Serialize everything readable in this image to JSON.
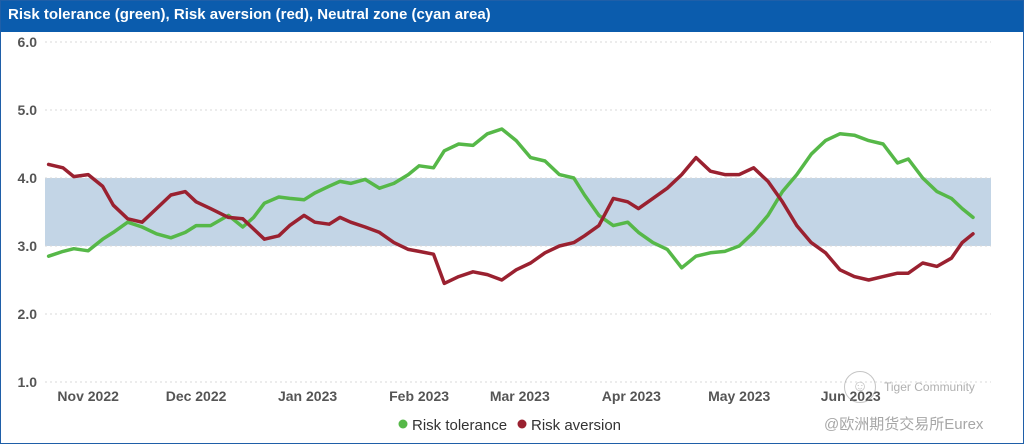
{
  "header": {
    "title": "Risk tolerance (green), Risk aversion (red), Neutral zone (cyan area)"
  },
  "watermark": {
    "line1": "Tiger Community",
    "line2": "@欧洲期货交易所Eurex"
  },
  "colors": {
    "header": "#0b5cad",
    "tolerance": "#56b848",
    "aversion": "#9a2130",
    "neutral_zone": "#c3d5e6",
    "grid": "#d9d9d9"
  },
  "chart_data": {
    "type": "line",
    "title": "Risk tolerance (green), Risk aversion (red), Neutral zone (cyan area)",
    "ylim": [
      1.0,
      6.0
    ],
    "yticks": [
      "1.0",
      "2.0",
      "3.0",
      "4.0",
      "5.0",
      "6.0"
    ],
    "xlim": [
      "2022-10-20",
      "2023-07-10"
    ],
    "x_tick_dates": [
      "2022-11-01",
      "2022-12-01",
      "2023-01-01",
      "2023-02-01",
      "2023-03-01",
      "2023-04-01",
      "2023-05-01",
      "2023-06-01"
    ],
    "x_tick_labels": [
      "Nov 2022",
      "Dec 2022",
      "Jan 2023",
      "Feb 2023",
      "Mar 2023",
      "Apr 2023",
      "May 2023",
      "Jun 2023"
    ],
    "neutral_zone": [
      3.0,
      4.0
    ],
    "grid": "horizontal dotted",
    "legend": "bottom-center",
    "series": [
      {
        "name": "Risk tolerance",
        "color": "#56b848",
        "x": [
          "2022-10-21",
          "2022-10-25",
          "2022-10-28",
          "2022-11-01",
          "2022-11-05",
          "2022-11-08",
          "2022-11-12",
          "2022-11-16",
          "2022-11-20",
          "2022-11-24",
          "2022-11-28",
          "2022-12-01",
          "2022-12-05",
          "2022-12-10",
          "2022-12-14",
          "2022-12-17",
          "2022-12-20",
          "2022-12-24",
          "2022-12-27",
          "2022-12-31",
          "2023-01-03",
          "2023-01-07",
          "2023-01-10",
          "2023-01-13",
          "2023-01-17",
          "2023-01-21",
          "2023-01-25",
          "2023-01-29",
          "2023-02-01",
          "2023-02-05",
          "2023-02-08",
          "2023-02-12",
          "2023-02-16",
          "2023-02-20",
          "2023-02-24",
          "2023-02-28",
          "2023-03-04",
          "2023-03-08",
          "2023-03-12",
          "2023-03-16",
          "2023-03-19",
          "2023-03-23",
          "2023-03-27",
          "2023-03-31",
          "2023-04-03",
          "2023-04-07",
          "2023-04-11",
          "2023-04-15",
          "2023-04-19",
          "2023-04-23",
          "2023-04-27",
          "2023-05-01",
          "2023-05-05",
          "2023-05-09",
          "2023-05-13",
          "2023-05-17",
          "2023-05-21",
          "2023-05-25",
          "2023-05-29",
          "2023-06-02",
          "2023-06-06",
          "2023-06-10",
          "2023-06-14",
          "2023-06-17",
          "2023-06-21",
          "2023-06-25",
          "2023-06-29",
          "2023-07-02",
          "2023-07-05"
        ],
        "values": [
          2.85,
          2.92,
          2.96,
          2.93,
          3.1,
          3.2,
          3.35,
          3.28,
          3.18,
          3.12,
          3.2,
          3.3,
          3.3,
          3.45,
          3.28,
          3.42,
          3.63,
          3.72,
          3.7,
          3.68,
          3.78,
          3.88,
          3.95,
          3.92,
          3.98,
          3.85,
          3.92,
          4.05,
          4.18,
          4.15,
          4.4,
          4.5,
          4.48,
          4.65,
          4.72,
          4.55,
          4.3,
          4.25,
          4.05,
          4.0,
          3.75,
          3.45,
          3.3,
          3.35,
          3.2,
          3.05,
          2.95,
          2.68,
          2.85,
          2.9,
          2.92,
          3.0,
          3.2,
          3.45,
          3.8,
          4.05,
          4.35,
          4.55,
          4.65,
          4.63,
          4.55,
          4.5,
          4.22,
          4.28,
          4.0,
          3.8,
          3.7,
          3.55,
          3.42
        ]
      },
      {
        "name": "Risk aversion",
        "color": "#9a2130",
        "x": [
          "2022-10-21",
          "2022-10-25",
          "2022-10-28",
          "2022-11-01",
          "2022-11-05",
          "2022-11-08",
          "2022-11-12",
          "2022-11-16",
          "2022-11-20",
          "2022-11-24",
          "2022-11-28",
          "2022-12-01",
          "2022-12-05",
          "2022-12-10",
          "2022-12-14",
          "2022-12-17",
          "2022-12-20",
          "2022-12-24",
          "2022-12-27",
          "2022-12-31",
          "2023-01-03",
          "2023-01-07",
          "2023-01-10",
          "2023-01-13",
          "2023-01-17",
          "2023-01-21",
          "2023-01-25",
          "2023-01-29",
          "2023-02-01",
          "2023-02-05",
          "2023-02-08",
          "2023-02-12",
          "2023-02-16",
          "2023-02-20",
          "2023-02-24",
          "2023-02-28",
          "2023-03-04",
          "2023-03-08",
          "2023-03-12",
          "2023-03-16",
          "2023-03-19",
          "2023-03-23",
          "2023-03-27",
          "2023-03-31",
          "2023-04-03",
          "2023-04-07",
          "2023-04-11",
          "2023-04-15",
          "2023-04-19",
          "2023-04-23",
          "2023-04-27",
          "2023-05-01",
          "2023-05-05",
          "2023-05-09",
          "2023-05-13",
          "2023-05-17",
          "2023-05-21",
          "2023-05-25",
          "2023-05-29",
          "2023-06-02",
          "2023-06-06",
          "2023-06-10",
          "2023-06-14",
          "2023-06-17",
          "2023-06-21",
          "2023-06-25",
          "2023-06-29",
          "2023-07-02",
          "2023-07-05"
        ],
        "values": [
          4.2,
          4.15,
          4.02,
          4.05,
          3.88,
          3.6,
          3.4,
          3.35,
          3.55,
          3.75,
          3.8,
          3.65,
          3.55,
          3.42,
          3.4,
          3.25,
          3.1,
          3.15,
          3.3,
          3.45,
          3.35,
          3.32,
          3.42,
          3.35,
          3.28,
          3.2,
          3.05,
          2.95,
          2.92,
          2.88,
          2.45,
          2.55,
          2.62,
          2.58,
          2.5,
          2.65,
          2.75,
          2.9,
          3.0,
          3.05,
          3.15,
          3.3,
          3.7,
          3.65,
          3.55,
          3.7,
          3.85,
          4.05,
          4.3,
          4.1,
          4.05,
          4.05,
          4.15,
          3.95,
          3.65,
          3.3,
          3.05,
          2.9,
          2.65,
          2.55,
          2.5,
          2.55,
          2.6,
          2.6,
          2.75,
          2.7,
          2.82,
          3.05,
          3.18
        ]
      }
    ]
  }
}
